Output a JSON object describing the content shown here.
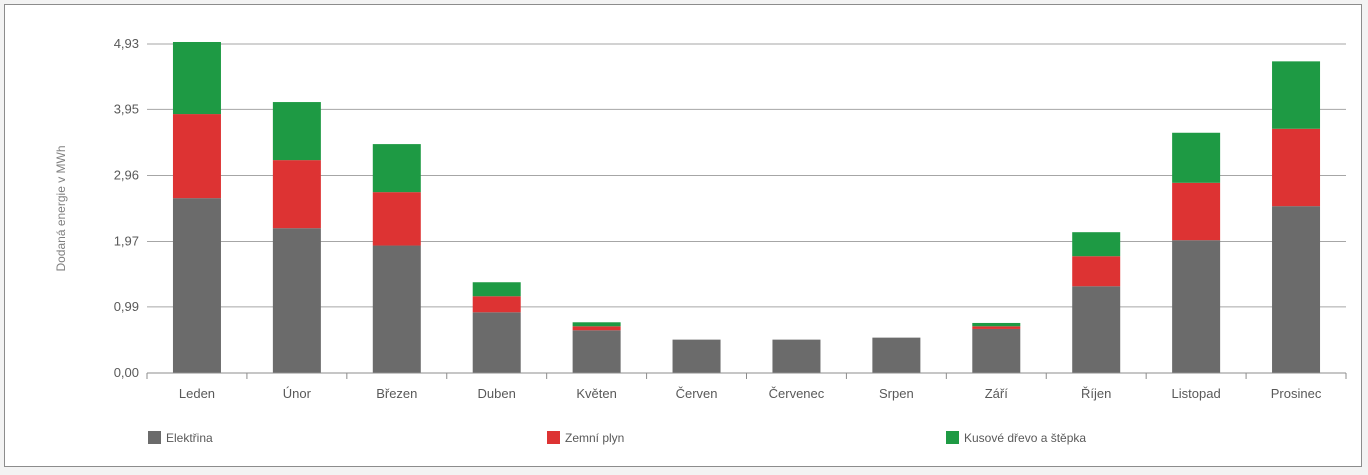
{
  "chart_data": {
    "type": "bar",
    "stacked": true,
    "title": "",
    "xlabel": "",
    "ylabel": "Dodaná energie v MWh",
    "ylim": [
      0,
      4.93
    ],
    "yticks": [
      "0,00",
      "0,99",
      "1,97",
      "2,96",
      "3,95",
      "4,93"
    ],
    "ytick_values": [
      0,
      0.99,
      1.97,
      2.96,
      3.95,
      4.93
    ],
    "grid": true,
    "legend_position": "bottom",
    "categories": [
      "Leden",
      "Únor",
      "Březen",
      "Duben",
      "Květen",
      "Červen",
      "Červenec",
      "Srpen",
      "Září",
      "Říjen",
      "Listopad",
      "Prosinec"
    ],
    "series": [
      {
        "name": "Elektřina",
        "color": "#6b6b6b",
        "values": [
          2.62,
          2.17,
          1.91,
          0.91,
          0.64,
          0.5,
          0.5,
          0.53,
          0.66,
          1.3,
          1.99,
          2.5
        ]
      },
      {
        "name": "Zemní plyn",
        "color": "#dd3333",
        "values": [
          1.26,
          1.02,
          0.8,
          0.24,
          0.06,
          0,
          0,
          0,
          0.04,
          0.45,
          0.86,
          1.16
        ]
      },
      {
        "name": "Kusové dřevo a štěpka",
        "color": "#1e9a44",
        "values": [
          1.08,
          0.87,
          0.72,
          0.21,
          0.06,
          0,
          0,
          0,
          0.05,
          0.36,
          0.75,
          1.01
        ]
      }
    ]
  }
}
